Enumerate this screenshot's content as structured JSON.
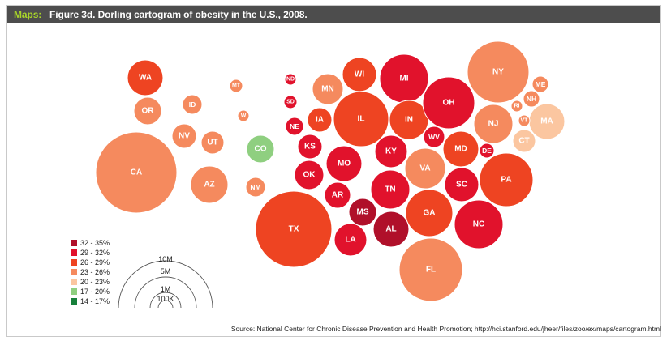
{
  "header": {
    "label": "Maps:",
    "title": "Figure 3d. Dorling cartogram of obesity in the U.S., 2008."
  },
  "source": "Source: National Center for Chronic Disease Prevention and Health Promotion; http://hci.stanford.edu/jheer/files/zoo/ex/maps/cartogram.html",
  "legend": [
    {
      "label": "32 - 35%",
      "color": "#b0102a"
    },
    {
      "label": "29 - 32%",
      "color": "#e1122c"
    },
    {
      "label": "26 - 29%",
      "color": "#ee4422"
    },
    {
      "label": "23 - 26%",
      "color": "#f58a5e"
    },
    {
      "label": "20 - 23%",
      "color": "#fbc6a0"
    },
    {
      "label": "17 - 20%",
      "color": "#8fcf80"
    },
    {
      "label": "14 - 17%",
      "color": "#17803b"
    }
  ],
  "scale": [
    "10M",
    "5M",
    "1M",
    "100K"
  ],
  "chart_data": {
    "type": "cartogram",
    "categories": [
      "32 - 35%",
      "29 - 32%",
      "26 - 29%",
      "23 - 26%",
      "20 - 23%",
      "17 - 20%",
      "14 - 17%"
    ],
    "states": [
      {
        "abbr": "WA",
        "category": 2
      },
      {
        "abbr": "OR",
        "category": 3
      },
      {
        "abbr": "CA",
        "category": 3
      },
      {
        "abbr": "ID",
        "category": 3
      },
      {
        "abbr": "NV",
        "category": 3
      },
      {
        "abbr": "UT",
        "category": 3
      },
      {
        "abbr": "AZ",
        "category": 3
      },
      {
        "abbr": "MT",
        "category": 3
      },
      {
        "abbr": "W",
        "category": 3
      },
      {
        "abbr": "CO",
        "category": 5
      },
      {
        "abbr": "NM",
        "category": 3
      },
      {
        "abbr": "ND",
        "category": 1
      },
      {
        "abbr": "SD",
        "category": 1
      },
      {
        "abbr": "NE",
        "category": 1
      },
      {
        "abbr": "KS",
        "category": 1
      },
      {
        "abbr": "OK",
        "category": 1
      },
      {
        "abbr": "TX",
        "category": 2
      },
      {
        "abbr": "MN",
        "category": 3
      },
      {
        "abbr": "IA",
        "category": 2
      },
      {
        "abbr": "MO",
        "category": 1
      },
      {
        "abbr": "AR",
        "category": 1
      },
      {
        "abbr": "LA",
        "category": 1
      },
      {
        "abbr": "MS",
        "category": 0
      },
      {
        "abbr": "AL",
        "category": 0
      },
      {
        "abbr": "WI",
        "category": 2
      },
      {
        "abbr": "IL",
        "category": 2
      },
      {
        "abbr": "MI",
        "category": 1
      },
      {
        "abbr": "IN",
        "category": 2
      },
      {
        "abbr": "OH",
        "category": 1
      },
      {
        "abbr": "KY",
        "category": 1
      },
      {
        "abbr": "TN",
        "category": 1
      },
      {
        "abbr": "WV",
        "category": 1
      },
      {
        "abbr": "VA",
        "category": 3
      },
      {
        "abbr": "NC",
        "category": 1
      },
      {
        "abbr": "SC",
        "category": 1
      },
      {
        "abbr": "GA",
        "category": 2
      },
      {
        "abbr": "FL",
        "category": 3
      },
      {
        "abbr": "MD",
        "category": 2
      },
      {
        "abbr": "DE",
        "category": 1
      },
      {
        "abbr": "PA",
        "category": 2
      },
      {
        "abbr": "NJ",
        "category": 3
      },
      {
        "abbr": "NY",
        "category": 3
      },
      {
        "abbr": "CT",
        "category": 4
      },
      {
        "abbr": "RI",
        "category": 3
      },
      {
        "abbr": "MA",
        "category": 4
      },
      {
        "abbr": "VT",
        "category": 3
      },
      {
        "abbr": "NH",
        "category": 3
      },
      {
        "abbr": "ME",
        "category": 3
      }
    ]
  }
}
